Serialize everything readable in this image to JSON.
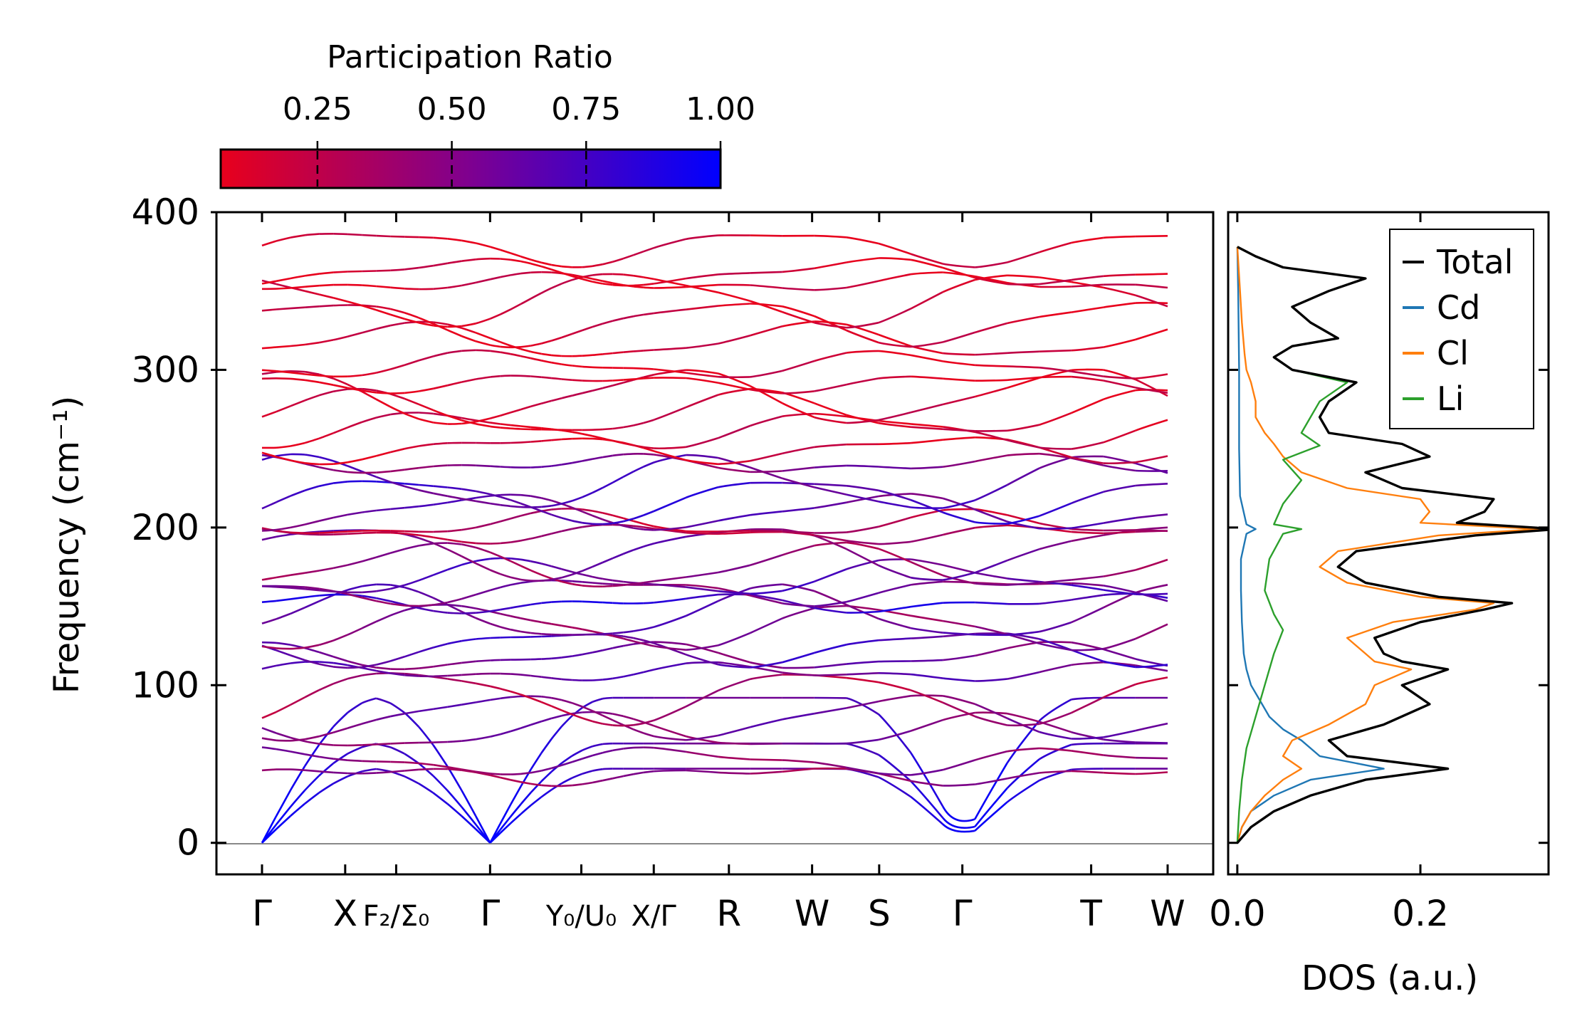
{
  "chart_data": [
    {
      "type": "line",
      "title": "",
      "xlabel": "",
      "ylabel": "Frequency (cm⁻¹)",
      "ylim": [
        -20,
        400
      ],
      "yticks": [
        0,
        100,
        200,
        300,
        400
      ],
      "ytick_labels": [
        "0",
        "100",
        "200",
        "300",
        "400"
      ],
      "kpath_positions": [
        0,
        0.62,
        1.0,
        1.7,
        2.38,
        2.92,
        3.48,
        4.1,
        4.6,
        5.22,
        6.18,
        6.75
      ],
      "kpath_segments": [
        [
          0,
          1.7
        ],
        [
          1.7,
          2.92
        ],
        [
          2.92,
          6.75
        ]
      ],
      "kpoints": [
        {
          "pos": 0,
          "label": "Γ"
        },
        {
          "pos": 0.62,
          "label": "X"
        },
        {
          "pos": 1.0,
          "label": "F₂/Σ₀"
        },
        {
          "pos": 1.7,
          "label": "Γ"
        },
        {
          "pos": 2.38,
          "label": "Y₀/U₀"
        },
        {
          "pos": 2.92,
          "label": "X/Γ"
        },
        {
          "pos": 3.48,
          "label": "R"
        },
        {
          "pos": 4.1,
          "label": "W"
        },
        {
          "pos": 4.6,
          "label": "S"
        },
        {
          "pos": 5.22,
          "label": "Γ"
        },
        {
          "pos": 6.18,
          "label": "T"
        },
        {
          "pos": 6.75,
          "label": "W"
        }
      ],
      "zero_line": 0,
      "colorbar": {
        "label": "Participation Ratio",
        "range": [
          0.07,
          1.0
        ],
        "ticks": [
          0.25,
          0.5,
          0.75,
          1.0
        ],
        "tick_labels": [
          "0.25",
          "0.50",
          "0.75",
          "1.00"
        ],
        "color_low": "#e8001c",
        "color_high": "#0000ff"
      },
      "acoustic_branches": [
        {
          "name": "acoustic-1",
          "max_freq": 47,
          "pr": 1.0
        },
        {
          "name": "acoustic-2",
          "max_freq": 63,
          "pr": 1.0
        },
        {
          "name": "acoustic-3",
          "max_freq": 92,
          "pr": 1.0
        }
      ],
      "optical_branch_baselines": [
        {
          "freq": 43,
          "pr": 0.4
        },
        {
          "freq": 52,
          "pr": 0.45
        },
        {
          "freq": 70,
          "pr": 0.5
        },
        {
          "freq": 80,
          "pr": 0.55
        },
        {
          "freq": 93,
          "pr": 0.3
        },
        {
          "freq": 108,
          "pr": 0.6
        },
        {
          "freq": 118,
          "pr": 0.55
        },
        {
          "freq": 124,
          "pr": 0.7
        },
        {
          "freq": 137,
          "pr": 0.45
        },
        {
          "freq": 145,
          "pr": 0.6
        },
        {
          "freq": 152,
          "pr": 0.8
        },
        {
          "freq": 160,
          "pr": 0.5
        },
        {
          "freq": 168,
          "pr": 0.65
        },
        {
          "freq": 175,
          "pr": 0.4
        },
        {
          "freq": 185,
          "pr": 0.55
        },
        {
          "freq": 196,
          "pr": 0.3
        },
        {
          "freq": 202,
          "pr": 0.25
        },
        {
          "freq": 210,
          "pr": 0.6
        },
        {
          "freq": 218,
          "pr": 0.75
        },
        {
          "freq": 228,
          "pr": 0.65
        },
        {
          "freq": 240,
          "pr": 0.5
        },
        {
          "freq": 250,
          "pr": 0.12
        },
        {
          "freq": 262,
          "pr": 0.15
        },
        {
          "freq": 272,
          "pr": 0.12
        },
        {
          "freq": 283,
          "pr": 0.14
        },
        {
          "freq": 292,
          "pr": 0.12
        },
        {
          "freq": 303,
          "pr": 0.13
        },
        {
          "freq": 318,
          "pr": 0.12
        },
        {
          "freq": 330,
          "pr": 0.13
        },
        {
          "freq": 345,
          "pr": 0.12
        },
        {
          "freq": 355,
          "pr": 0.13
        },
        {
          "freq": 362,
          "pr": 0.12
        },
        {
          "freq": 378,
          "pr": 0.12
        }
      ]
    },
    {
      "type": "line",
      "title": "",
      "xlabel": "DOS (a.u.)",
      "ylabel": "",
      "xlim": [
        -0.01,
        0.34
      ],
      "ylim": [
        -20,
        400
      ],
      "xticks": [
        0.0,
        0.2
      ],
      "xtick_labels": [
        "0.0",
        "0.2"
      ],
      "legend": {
        "placement": "top-right",
        "entries": [
          "Total",
          "Cd",
          "Cl",
          "Li"
        ]
      },
      "series": [
        {
          "name": "Total",
          "color": "#000000",
          "freq": [
            0,
            10,
            20,
            30,
            40,
            47,
            55,
            65,
            75,
            88,
            100,
            110,
            115,
            120,
            130,
            140,
            148,
            152,
            156,
            165,
            175,
            185,
            195,
            199,
            203,
            210,
            218,
            225,
            235,
            245,
            253,
            260,
            270,
            280,
            292,
            300,
            308,
            315,
            320,
            330,
            340,
            350,
            358,
            365,
            372,
            378
          ],
          "dos": [
            0.0,
            0.015,
            0.04,
            0.08,
            0.14,
            0.23,
            0.12,
            0.1,
            0.16,
            0.21,
            0.18,
            0.23,
            0.18,
            0.16,
            0.15,
            0.2,
            0.27,
            0.3,
            0.22,
            0.14,
            0.11,
            0.13,
            0.26,
            0.35,
            0.24,
            0.27,
            0.28,
            0.18,
            0.14,
            0.21,
            0.18,
            0.1,
            0.09,
            0.1,
            0.13,
            0.06,
            0.04,
            0.06,
            0.11,
            0.08,
            0.06,
            0.1,
            0.14,
            0.05,
            0.02,
            0.0
          ]
        },
        {
          "name": "Cd",
          "color": "#1f77b4",
          "freq": [
            0,
            10,
            20,
            30,
            40,
            47,
            55,
            65,
            72,
            80,
            90,
            100,
            110,
            120,
            140,
            160,
            180,
            196,
            199,
            202,
            220,
            250,
            300,
            350,
            378
          ],
          "dos": [
            0.0,
            0.005,
            0.015,
            0.04,
            0.08,
            0.16,
            0.09,
            0.07,
            0.05,
            0.035,
            0.025,
            0.015,
            0.01,
            0.007,
            0.005,
            0.004,
            0.004,
            0.01,
            0.02,
            0.01,
            0.003,
            0.002,
            0.002,
            0.001,
            0.0
          ]
        },
        {
          "name": "Cl",
          "color": "#ff7f0e",
          "freq": [
            0,
            10,
            20,
            30,
            40,
            47,
            55,
            65,
            75,
            88,
            100,
            110,
            115,
            120,
            130,
            140,
            148,
            152,
            156,
            165,
            175,
            185,
            195,
            199,
            203,
            210,
            218,
            225,
            235,
            245,
            253,
            260,
            270,
            280,
            292,
            300,
            310,
            330,
            350,
            378
          ],
          "dos": [
            0.0,
            0.005,
            0.015,
            0.03,
            0.05,
            0.07,
            0.05,
            0.06,
            0.1,
            0.14,
            0.15,
            0.19,
            0.15,
            0.14,
            0.12,
            0.17,
            0.26,
            0.28,
            0.2,
            0.12,
            0.09,
            0.11,
            0.22,
            0.33,
            0.2,
            0.21,
            0.2,
            0.12,
            0.07,
            0.05,
            0.04,
            0.03,
            0.02,
            0.02,
            0.015,
            0.01,
            0.008,
            0.005,
            0.003,
            0.0
          ]
        },
        {
          "name": "Li",
          "color": "#2ca02c",
          "freq": [
            0,
            20,
            40,
            60,
            80,
            100,
            120,
            135,
            145,
            160,
            180,
            196,
            199,
            202,
            215,
            230,
            243,
            252,
            260,
            270,
            280,
            292,
            300,
            308,
            315,
            320,
            330,
            340,
            350,
            358,
            365,
            372,
            378
          ],
          "dos": [
            0.0,
            0.002,
            0.005,
            0.01,
            0.02,
            0.03,
            0.04,
            0.05,
            0.04,
            0.03,
            0.035,
            0.05,
            0.07,
            0.04,
            0.05,
            0.07,
            0.05,
            0.09,
            0.07,
            0.08,
            0.09,
            0.12,
            0.06,
            0.04,
            0.06,
            0.11,
            0.08,
            0.06,
            0.1,
            0.14,
            0.05,
            0.02,
            0.0
          ]
        }
      ]
    }
  ]
}
